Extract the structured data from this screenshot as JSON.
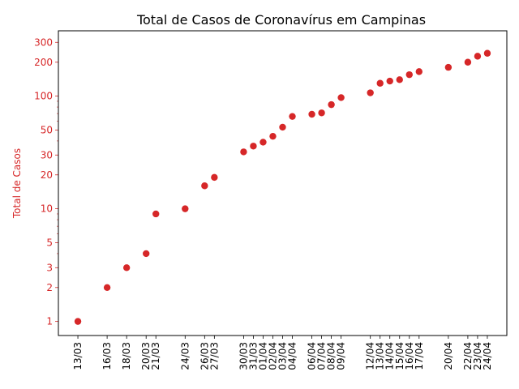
{
  "chart_data": {
    "type": "scatter",
    "title": "Total de Casos de Coronavírus em Campinas",
    "xlabel": "",
    "ylabel": "Total de Casos",
    "y_scale": "log",
    "ylim": [
      0.75,
      380
    ],
    "xlim": [
      "2020-03-11",
      "2020-04-26"
    ],
    "grid": false,
    "y_ticks": [
      1,
      2,
      3,
      5,
      10,
      20,
      30,
      50,
      100,
      200,
      300
    ],
    "y_tick_labels": [
      "1",
      "2",
      "3",
      "5",
      "10",
      "20",
      "30",
      "50",
      "100",
      "200",
      "300"
    ],
    "colors": {
      "points": "#d62728",
      "y_axis": "#d62728",
      "x_axis": "#000000"
    },
    "series": [
      {
        "x": [
          "2020-03-13",
          "2020-03-16",
          "2020-03-18",
          "2020-03-20",
          "2020-03-21",
          "2020-03-24",
          "2020-03-26",
          "2020-03-27",
          "2020-03-30",
          "2020-03-31",
          "2020-04-01",
          "2020-04-02",
          "2020-04-03",
          "2020-04-04",
          "2020-04-06",
          "2020-04-07",
          "2020-04-08",
          "2020-04-09",
          "2020-04-12",
          "2020-04-13",
          "2020-04-14",
          "2020-04-15",
          "2020-04-16",
          "2020-04-17",
          "2020-04-20",
          "2020-04-22",
          "2020-04-23",
          "2020-04-24"
        ],
        "x_labels": [
          "13/03",
          "16/03",
          "18/03",
          "20/03",
          "21/03",
          "24/03",
          "26/03",
          "27/03",
          "30/03",
          "31/03",
          "01/04",
          "02/04",
          "03/04",
          "04/04",
          "06/04",
          "07/04",
          "08/04",
          "09/04",
          "12/04",
          "13/04",
          "14/04",
          "15/04",
          "16/04",
          "17/04",
          "20/04",
          "22/04",
          "23/04",
          "24/04"
        ],
        "values": [
          1,
          2,
          3,
          4,
          9,
          10,
          16,
          19,
          32,
          36,
          39,
          44,
          53,
          66,
          69,
          71,
          84,
          97,
          107,
          130,
          136,
          140,
          155,
          165,
          180,
          200,
          226,
          240
        ]
      }
    ]
  }
}
